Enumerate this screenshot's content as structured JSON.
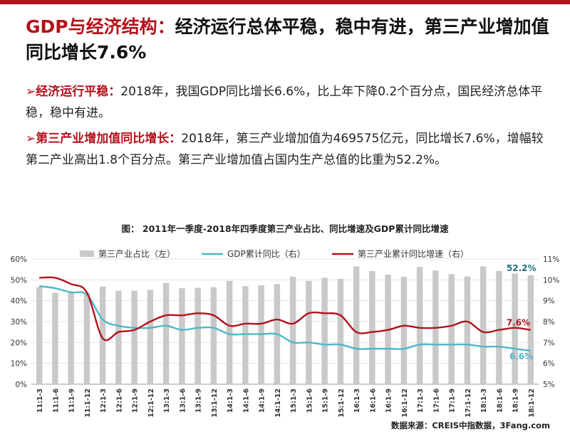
{
  "header": {
    "title_prefix": "GDP与经济结构：",
    "title_main": "经济运行总体平稳，稳中有进，第三产业增加值同比增长7.6%"
  },
  "paragraphs": [
    {
      "marker": "➢",
      "key": "经济运行平稳：",
      "text": "2018年，我国GDP同比增长6.6%，比上年下降0.2个百分点，国民经济总体平稳，稳中有进。"
    },
    {
      "marker": "➢",
      "key": "第三产业增加值同比增长：",
      "text": "2018年，第三产业增加值为469575亿元，同比增长7.6%，增幅较第二产业高出1.8个百分点。第三产业增加值占国内生产总值的比重为52.2%。"
    }
  ],
  "source_note": "数据来源：CREIS中指数据，3Fang.com",
  "colors": {
    "accent": "#b2121b",
    "bar": "#c9c9c9",
    "gdp_line": "#4db8c8",
    "tertiary_line": "#b2121b",
    "gdp_label": "#1f6f86"
  },
  "chart_data": {
    "type": "bar",
    "title": "图： 2011年一季度-2018年四季度第三产业占比、同比增速及GDP累计同比增速",
    "categories": [
      "11:1-3",
      "11:1-6",
      "11:1-9",
      "11:1-12",
      "12:1-3",
      "12:1-6",
      "12:1-9",
      "12:1-12",
      "13:1-3",
      "13:1-6",
      "13:1-9",
      "13:1-12",
      "14:1-3",
      "14:1-6",
      "14:1-9",
      "14:1-12",
      "15:1-3",
      "15:1-6",
      "15:1-9",
      "15:1-12",
      "16:1-3",
      "16:1-6",
      "16:1-9",
      "16:1-12",
      "17:1-3",
      "17:1-6",
      "17:1-9",
      "17:1-12",
      "18:1-3",
      "18:1-6",
      "18:1-9",
      "18:1-12"
    ],
    "y_left": {
      "min": 0,
      "max": 60,
      "ticks": [
        "0%",
        "10%",
        "20%",
        "30%",
        "40%",
        "50%",
        "60%"
      ]
    },
    "y_right": {
      "min": 5,
      "max": 11,
      "ticks": [
        "5%",
        "6%",
        "7%",
        "8%",
        "9%",
        "10%",
        "11%"
      ]
    },
    "series": [
      {
        "name": "第三产业占比（左）",
        "type": "bar",
        "axis": "left",
        "values": [
          46.5,
          43.8,
          43.8,
          43.8,
          46.8,
          44.8,
          44.8,
          45.2,
          48.5,
          46,
          46.2,
          46.5,
          49.5,
          47,
          47.5,
          48,
          51.5,
          49.5,
          51,
          50.5,
          56.5,
          54.2,
          52.5,
          51.5,
          56.2,
          54.5,
          52.8,
          51.6,
          56.5,
          54.3,
          53,
          52.2
        ]
      },
      {
        "name": "GDP累计同比（右）",
        "type": "line",
        "axis": "right",
        "values": [
          9.7,
          9.6,
          9.4,
          9.3,
          8.1,
          7.8,
          7.7,
          7.7,
          7.8,
          7.6,
          7.7,
          7.7,
          7.4,
          7.4,
          7.4,
          7.4,
          7.0,
          7.0,
          6.9,
          6.9,
          6.7,
          6.7,
          6.7,
          6.7,
          6.9,
          6.9,
          6.9,
          6.9,
          6.8,
          6.8,
          6.7,
          6.6
        ]
      },
      {
        "name": "第三产业累计同比增速（右）",
        "type": "line",
        "axis": "right",
        "values": [
          10.1,
          10.1,
          9.8,
          9.4,
          7.2,
          7.5,
          7.6,
          8.0,
          8.3,
          8.3,
          8.4,
          8.3,
          7.8,
          7.9,
          7.9,
          8.1,
          7.9,
          8.4,
          8.4,
          8.3,
          7.5,
          7.5,
          7.6,
          7.8,
          7.7,
          7.7,
          7.8,
          8.0,
          7.5,
          7.6,
          7.7,
          7.6
        ]
      }
    ],
    "annotations": [
      {
        "series": 0,
        "index": 31,
        "text": "52.2%"
      },
      {
        "series": 2,
        "index": 31,
        "text": "7.6%"
      },
      {
        "series": 1,
        "index": 31,
        "text": "6.6%"
      }
    ]
  }
}
